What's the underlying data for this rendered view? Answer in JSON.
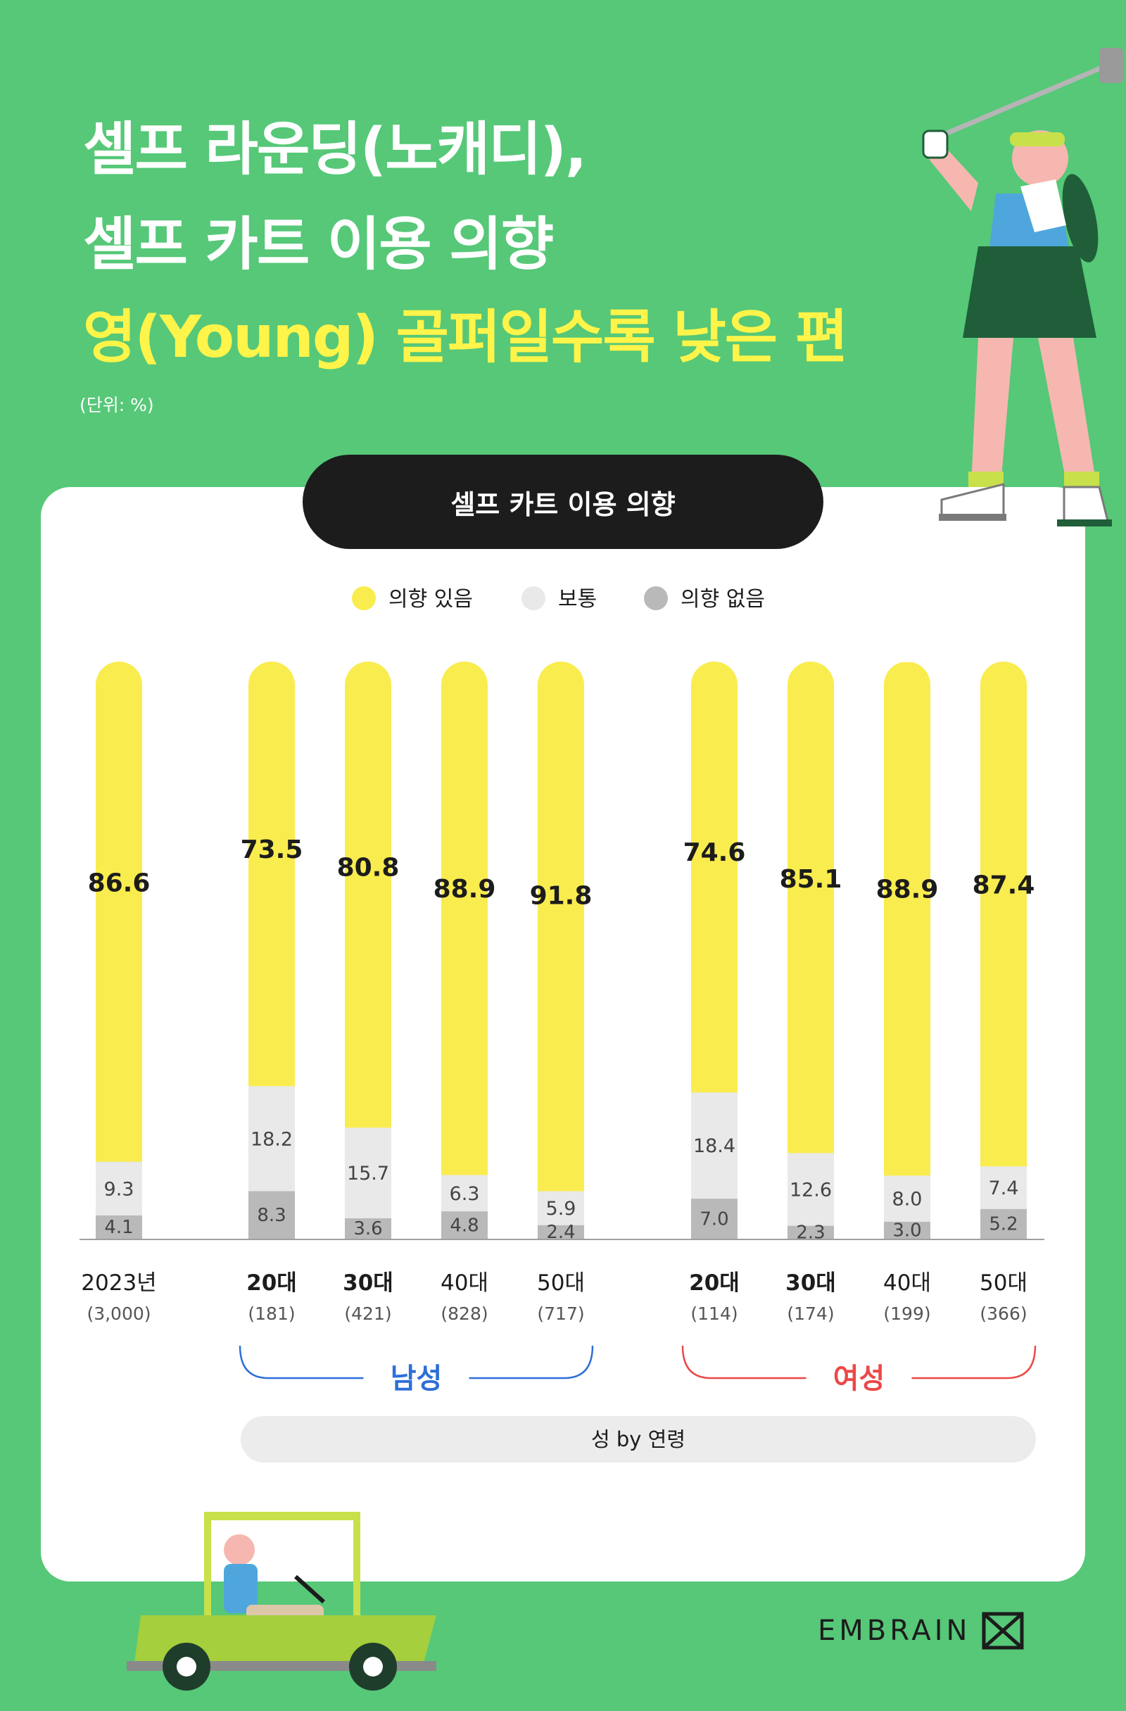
{
  "title": {
    "line1": "셀프 라운딩(노캐디),",
    "line2": "셀프 카트 이용 의향",
    "line3": "영(Young) 골퍼일수록 낮은 편"
  },
  "unit": "(단위: %)",
  "chart_title": "셀프 카트 이용 의향",
  "colors": {
    "yes": "#f9ec4f",
    "neutral": "#e9e9e9",
    "no": "#b9b9b9",
    "male": "#2e6fd8",
    "female": "#ec4848",
    "background": "#56c878"
  },
  "chart_data": {
    "type": "bar",
    "stacked": true,
    "title": "셀프 카트 이용 의향",
    "categories": [
      "2023년",
      "20대",
      "30대",
      "40대",
      "50대",
      "20대",
      "30대",
      "40대",
      "50대"
    ],
    "sample_sizes": [
      "(3,000)",
      "(181)",
      "(421)",
      "(828)",
      "(717)",
      "(114)",
      "(174)",
      "(199)",
      "(366)"
    ],
    "bold_categories": [
      false,
      true,
      true,
      false,
      false,
      true,
      true,
      false,
      false
    ],
    "series": [
      {
        "name": "의향 있음",
        "values": [
          86.6,
          73.5,
          80.8,
          88.9,
          91.8,
          74.6,
          85.1,
          88.9,
          87.4
        ]
      },
      {
        "name": "보통",
        "values": [
          9.3,
          18.2,
          15.7,
          6.3,
          5.9,
          18.4,
          12.6,
          8.0,
          7.4
        ]
      },
      {
        "name": "의향 없음",
        "values": [
          4.1,
          8.3,
          3.6,
          4.8,
          2.4,
          7.0,
          2.3,
          3.0,
          5.2
        ]
      }
    ],
    "groups": [
      {
        "label": "남성",
        "from": 1,
        "to": 4
      },
      {
        "label": "여성",
        "from": 5,
        "to": 8
      }
    ],
    "group_axis_label": "성 by 연령",
    "legend_position": "top-center",
    "ylim": [
      0,
      100
    ],
    "grid": false
  },
  "brand": "EMBRAIN"
}
